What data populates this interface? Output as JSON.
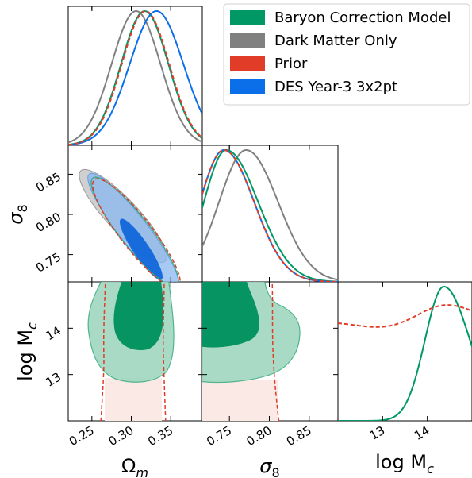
{
  "chart_data": {
    "type": "corner",
    "parameters": [
      {
        "key": "omega_m",
        "label_main": "Ω",
        "label_sub": "m",
        "range": [
          0.22,
          0.39
        ],
        "ticks": [
          0.25,
          0.3,
          0.35
        ],
        "tick_labels": [
          "0.25",
          "0.30",
          "0.35"
        ]
      },
      {
        "key": "sigma_8",
        "label_main": "σ",
        "label_sub": "8",
        "range": [
          0.716,
          0.886
        ],
        "ticks": [
          0.75,
          0.8,
          0.85
        ],
        "tick_labels": [
          "0.75",
          "0.80",
          "0.85"
        ]
      },
      {
        "key": "logMc",
        "label_main": "log M",
        "label_sub": "c",
        "range": [
          12.0,
          15.0
        ],
        "ticks": [
          13,
          14
        ],
        "tick_labels": [
          "13",
          "14"
        ]
      }
    ],
    "series": [
      {
        "name": "Baryon Correction Model",
        "color": "#009966",
        "style": "solid"
      },
      {
        "name": "Dark Matter Only",
        "color": "#808080",
        "style": "solid"
      },
      {
        "name": "Prior",
        "color": "#e03c28",
        "style": "dashed"
      },
      {
        "name": "DES Year-3 3x2pt",
        "color": "#0a6fe8",
        "style": "solid"
      }
    ],
    "marginals": {
      "omega_m": {
        "Baryon Correction Model": {
          "mean": 0.317,
          "sd": 0.03
        },
        "Dark Matter Only": {
          "mean": 0.306,
          "sd": 0.031
        },
        "Prior": {
          "mean": 0.318,
          "sd": 0.03
        },
        "DES Year-3 3x2pt": {
          "mean": 0.332,
          "sd": 0.034
        }
      },
      "sigma_8": {
        "Baryon Correction Model": {
          "mean": 0.746,
          "sd_left": 0.028,
          "sd_right": 0.04
        },
        "Dark Matter Only": {
          "mean": 0.771,
          "sd_left": 0.034,
          "sd_right": 0.04
        },
        "Prior": {
          "mean": 0.743,
          "sd_left": 0.03,
          "sd_right": 0.038
        },
        "DES Year-3 3x2pt": {
          "mean": 0.743,
          "sd_left": 0.03,
          "sd_right": 0.038
        }
      },
      "logMc": {
        "Baryon Correction Model": {
          "peak": 14.37,
          "sd_left": 0.42,
          "sd_right": 0.58
        },
        "Prior": {
          "note": "broad nearly flat, gentle bump near 14.4"
        }
      }
    },
    "contours_2d": {
      "omega_m_sigma_8": [
        {
          "series": "Dark Matter Only",
          "center": [
            0.291,
            0.814
          ],
          "level": "95%",
          "fill": true
        },
        {
          "series": "DES Year-3 3x2pt",
          "center": [
            0.322,
            0.793
          ],
          "level": "68% and 95%",
          "fill": true
        },
        {
          "series": "Baryon Correction Model",
          "center": [
            0.318,
            0.8
          ],
          "level": "95%",
          "fill": false
        },
        {
          "series": "Prior",
          "center": [
            0.318,
            0.8
          ],
          "level": "95%",
          "fill": false
        }
      ],
      "omega_m_logMc": [
        {
          "series": "Baryon Correction Model",
          "level": "68% and 95%",
          "fill": true,
          "sigma": "68%: 0.29-0.35 x 13.8-15; 95%: 0.26-0.37 x 12.9-15"
        },
        {
          "series": "Prior",
          "level": "95%",
          "fill": false,
          "bounds": [
            0.267,
            0.354
          ]
        }
      ],
      "sigma_8_logMc": [
        {
          "series": "Baryon Correction Model",
          "level": "68% and 95%",
          "fill": true
        },
        {
          "series": "Prior",
          "level": "95%",
          "fill": false,
          "bounds": [
            0.716,
            0.818
          ]
        }
      ]
    },
    "legend": {
      "placement": "top-right"
    }
  }
}
